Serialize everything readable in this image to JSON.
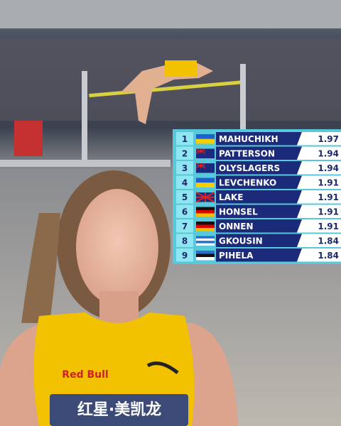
{
  "scoreboard": {
    "rows": [
      {
        "rank": "1",
        "name": "MAHUCHIKH",
        "mark": "1.97"
      },
      {
        "rank": "2",
        "name": "PATTERSON",
        "mark": "1.94"
      },
      {
        "rank": "3",
        "name": "OLYSLAGERS",
        "mark": "1.94"
      },
      {
        "rank": "4",
        "name": "LEVCHENKO",
        "mark": "1.91"
      },
      {
        "rank": "5",
        "name": "LAKE",
        "mark": "1.91"
      },
      {
        "rank": "6",
        "name": "HONSEL",
        "mark": "1.91"
      },
      {
        "rank": "7",
        "name": "ONNEN",
        "mark": "1.91"
      },
      {
        "rank": "8",
        "name": "GKOUSIN",
        "mark": "1.84"
      },
      {
        "rank": "9",
        "name": "PIHELA",
        "mark": "1.84"
      }
    ]
  },
  "shirt": {
    "sponsor": "Red Bull",
    "bib": "红星·美凯龙"
  }
}
